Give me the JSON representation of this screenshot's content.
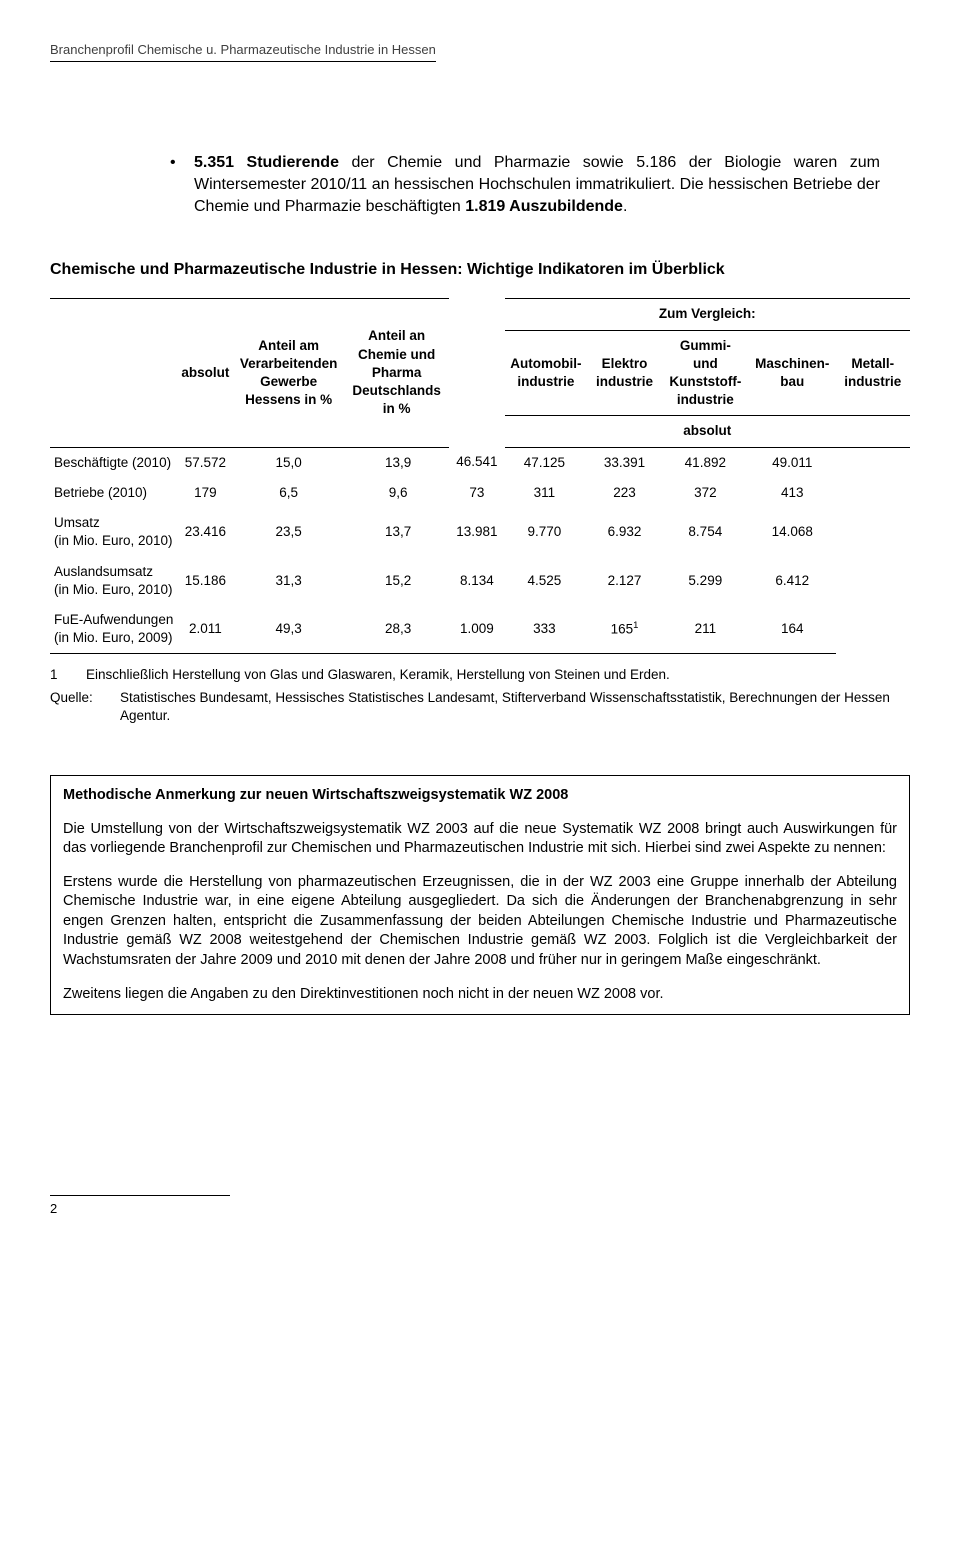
{
  "header": "Branchenprofil Chemische u. Pharmazeutische Industrie in Hessen",
  "bullet": {
    "pre": "5.351 Studierende",
    "mid1": " der Chemie und Pharmazie sowie 5.186 der Biologie waren zum Wintersemester 2010/11 an hessischen Hochschulen immatrikuliert. Die hessischen Betriebe der Chemie und Pharmazie beschäftigten ",
    "mid2": "1.819 Auszubildende",
    "post": "."
  },
  "section_title": "Chemische und Pharmazeutische Industrie in Hessen: Wichtige Indikatoren im Überblick",
  "table": {
    "head": {
      "absolut": "absolut",
      "anteil_hessen": "Anteil am Verarbeitenden Gewerbe Hessens in %",
      "anteil_de": "Anteil an Chemie und Pharma Deutschlands in %",
      "vergleich": "Zum Vergleich:",
      "auto": "Automobil-industrie",
      "elektro": "Elektro industrie",
      "gummi": "Gummi- und Kunststoff-industrie",
      "maschinen": "Maschinen-bau",
      "metall": "Metall-industrie",
      "abs2": "absolut"
    },
    "rows": [
      {
        "label": "Beschäftigte (2010)",
        "c": [
          "57.572",
          "15,0",
          "13,9",
          "46.541",
          "47.125",
          "33.391",
          "41.892",
          "49.011"
        ]
      },
      {
        "label": "Betriebe (2010)",
        "c": [
          "179",
          "6,5",
          "9,6",
          "73",
          "311",
          "223",
          "372",
          "413"
        ]
      },
      {
        "label": "Umsatz\n(in Mio. Euro, 2010)",
        "c": [
          "23.416",
          "23,5",
          "13,7",
          "13.981",
          "9.770",
          "6.932",
          "8.754",
          "14.068"
        ]
      },
      {
        "label": "Auslandsumsatz\n(in Mio. Euro, 2010)",
        "c": [
          "15.186",
          "31,3",
          "15,2",
          "8.134",
          "4.525",
          "2.127",
          "5.299",
          "6.412"
        ]
      },
      {
        "label": "FuE-Aufwendungen\n(in Mio. Euro, 2009)",
        "c": [
          "2.011",
          "49,3",
          "28,3",
          "1.009",
          "333",
          "165",
          "211",
          "164"
        ],
        "sup": "1",
        "supcol": 5
      }
    ]
  },
  "footnote": {
    "num": "1",
    "text": "Einschließlich Herstellung von Glas und Glaswaren, Keramik, Herstellung von Steinen und Erden."
  },
  "source": {
    "label": "Quelle:",
    "text": "Statistisches Bundesamt, Hessisches Statistisches Landesamt, Stifterverband Wissenschaftsstatistik, Berechnungen der Hessen Agentur."
  },
  "note": {
    "title": "Methodische Anmerkung zur neuen Wirtschaftszweigsystematik WZ 2008",
    "p1": "Die Umstellung von der Wirtschaftszweigsystematik WZ 2003 auf die neue Systematik WZ 2008 bringt auch Auswirkungen für das vorliegende Branchenprofil zur Chemischen und Pharmazeutischen Industrie mit sich. Hierbei sind zwei Aspekte zu nennen:",
    "p2": "Erstens wurde die Herstellung von pharmazeutischen Erzeugnissen, die in der WZ 2003 eine Gruppe innerhalb der Abteilung Chemische Industrie war, in eine eigene Abteilung ausgegliedert. Da sich die Änderungen der Branchenabgrenzung in sehr engen Grenzen halten, entspricht die Zusammenfassung der beiden Abteilungen Chemische Industrie und Pharmazeutische Industrie gemäß WZ 2008 weitestgehend der Chemischen Industrie gemäß WZ 2003. Folglich ist die Vergleichbarkeit der Wachstumsraten der Jahre 2009 und 2010 mit denen der Jahre 2008 und früher nur in geringem Maße eingeschränkt.",
    "p3": "Zweitens liegen die Angaben zu den Direktinvestitionen noch nicht in der neuen WZ 2008 vor."
  },
  "page_number": "2"
}
